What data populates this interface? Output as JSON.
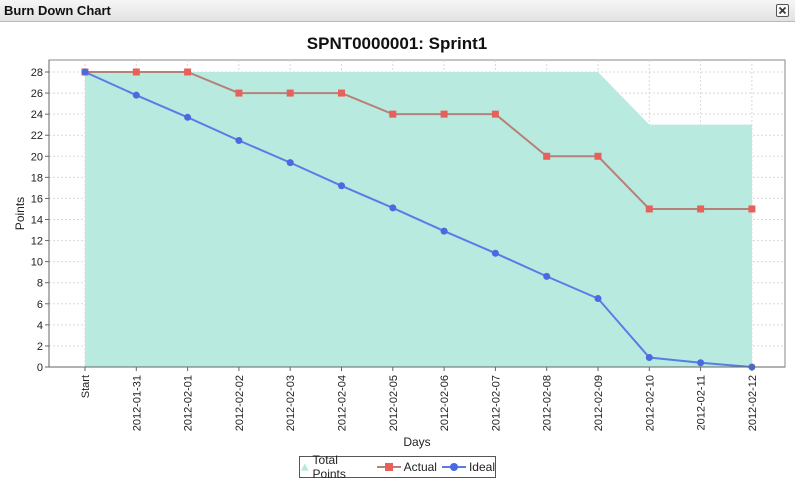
{
  "window": {
    "title": "Burn Down Chart",
    "close_icon": "close-icon"
  },
  "colors": {
    "total_fill": "#b8eadf",
    "actual_line": "#b5827a",
    "actual_marker": "#e8605a",
    "ideal_line": "#5b7ce6",
    "ideal_marker": "#4a6ae0",
    "grid": "#d9d9d9"
  },
  "chart_data": {
    "type": "line",
    "title": "SPNT0000001: Sprint1",
    "xlabel": "Days",
    "ylabel": "Points",
    "ylim": [
      0,
      28
    ],
    "yticks": [
      0,
      2,
      4,
      6,
      8,
      10,
      12,
      14,
      16,
      18,
      20,
      22,
      24,
      26,
      28
    ],
    "grid": true,
    "legend_position": "bottom-center",
    "categories": [
      "Start",
      "2012-01-31",
      "2012-02-01",
      "2012-02-02",
      "2012-02-03",
      "2012-02-04",
      "2012-02-05",
      "2012-02-06",
      "2012-02-07",
      "2012-02-08",
      "2012-02-09",
      "2012-02-10",
      "2012-02-11",
      "2012-02-12"
    ],
    "series": [
      {
        "name": "Total Points",
        "kind": "area",
        "values": [
          28,
          28,
          28,
          28,
          28,
          28,
          28,
          28,
          28,
          28,
          28,
          23,
          23,
          23
        ]
      },
      {
        "name": "Actual",
        "kind": "line",
        "marker": "square",
        "values": [
          28,
          28,
          28,
          26,
          26,
          26,
          24,
          24,
          24,
          20,
          20,
          15,
          15,
          15
        ]
      },
      {
        "name": "Ideal",
        "kind": "line",
        "marker": "circle",
        "values": [
          28,
          25.8,
          23.7,
          21.5,
          19.4,
          17.2,
          15.1,
          12.9,
          10.8,
          8.6,
          6.5,
          0.9,
          0.4,
          0
        ]
      }
    ]
  }
}
